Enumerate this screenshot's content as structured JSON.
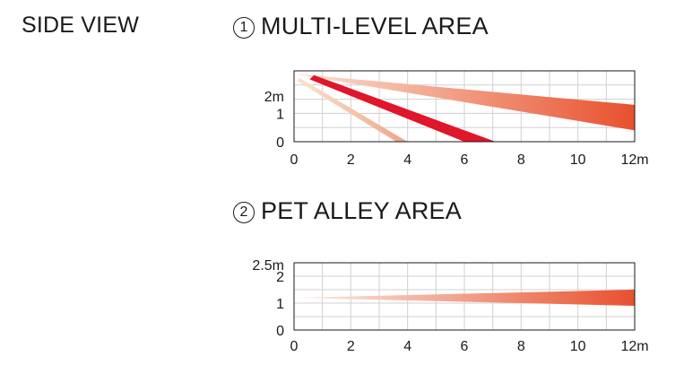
{
  "side_view_label": "SIDE VIEW",
  "chart_data": [
    {
      "type": "diagram",
      "number": "1",
      "title": "MULTI-LEVEL AREA",
      "x_ticks": [
        "0",
        "2",
        "4",
        "6",
        "8",
        "10",
        "12m"
      ],
      "y_ticks": [
        "0",
        "1",
        "2m"
      ],
      "xlim": [
        0,
        12
      ],
      "ylim": [
        0,
        2.5
      ],
      "sensor_height": 2.4,
      "zones": [
        {
          "name": "long-range",
          "far_x": 12,
          "top_y": 1.3,
          "bottom_y": 0.4,
          "color_start": "#fbe3d2",
          "color_end": "#e8502e"
        },
        {
          "name": "mid-range",
          "far_x": 6,
          "far_x_top": 7.1,
          "color_start": "#e0162b",
          "color_end": "#e0162b"
        },
        {
          "name": "short-range",
          "far_x": 3.6,
          "far_x_top": 4,
          "color_start": "#fbe3d2",
          "color_end": "#eca687"
        }
      ]
    },
    {
      "type": "diagram",
      "number": "2",
      "title": "PET ALLEY AREA",
      "x_ticks": [
        "0",
        "2",
        "4",
        "6",
        "8",
        "10",
        "12m"
      ],
      "y_ticks": [
        "0",
        "1",
        "2",
        "2.5m"
      ],
      "xlim": [
        0,
        12
      ],
      "ylim": [
        0,
        2.5
      ],
      "beam": {
        "start_y": 1.2,
        "far_x": 12,
        "top_y": 1.5,
        "bottom_y": 0.9,
        "color_start": "#fdeee4",
        "color_end": "#e8502e"
      }
    }
  ]
}
